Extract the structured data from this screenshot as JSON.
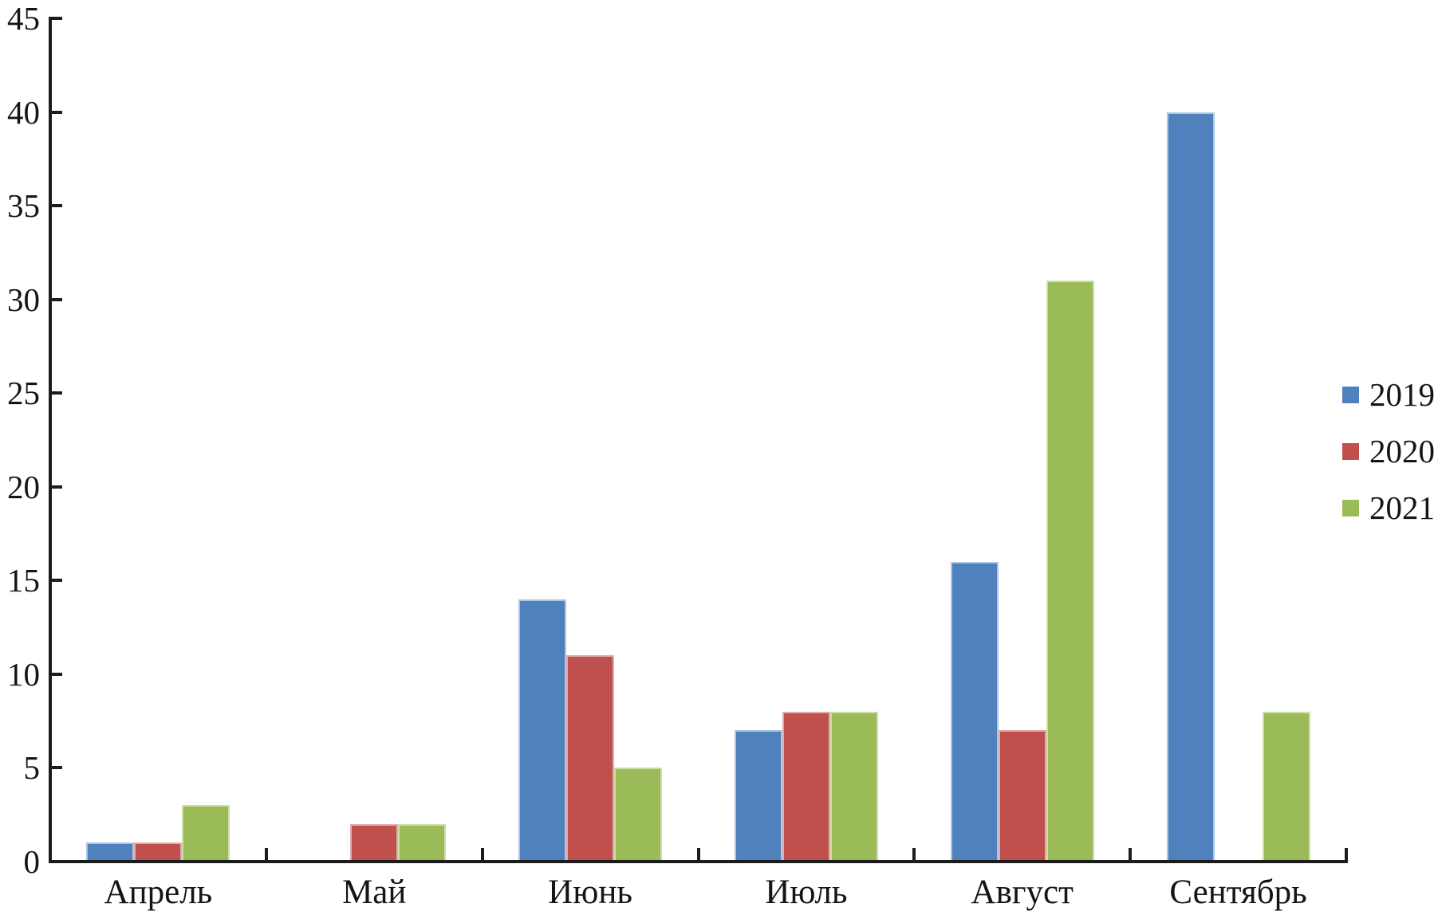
{
  "chart_data": {
    "type": "bar",
    "title": "",
    "xlabel": "",
    "ylabel": "",
    "categories": [
      "Апрель",
      "Май",
      "Июнь",
      "Июль",
      "Август",
      "Сентябрь"
    ],
    "series": [
      {
        "name": "2019",
        "color": "#4F81BD",
        "edge_color": "#AEC6E2",
        "values": [
          1,
          0,
          14,
          7,
          16,
          40
        ]
      },
      {
        "name": "2020",
        "color": "#C0504D",
        "edge_color": "#E0AEAD",
        "values": [
          1,
          2,
          11,
          8,
          7,
          0
        ]
      },
      {
        "name": "2021",
        "color": "#9BBB59",
        "edge_color": "#CEDEA8",
        "values": [
          3,
          2,
          5,
          8,
          31,
          8
        ]
      }
    ],
    "ylim": [
      0,
      45
    ],
    "yticks": [
      0,
      5,
      10,
      15,
      20,
      25,
      30,
      35,
      40,
      45
    ],
    "grid": "off",
    "legend_position": "right",
    "axis_color": "#1c1c1c"
  }
}
